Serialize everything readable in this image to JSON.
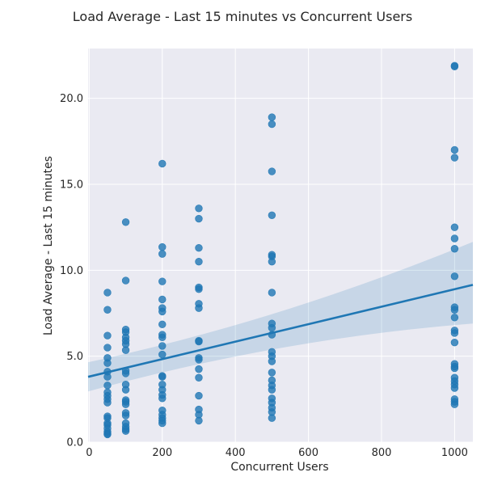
{
  "chart_data": {
    "type": "scatter",
    "title": "Load Average - Last 15 minutes vs Concurrent Users",
    "xlabel": "Concurrent Users",
    "ylabel": "Load Average - Last 15 minutes",
    "xlim": [
      -3,
      1050
    ],
    "ylim": [
      0,
      22.9
    ],
    "xticks": [
      0,
      200,
      400,
      600,
      800,
      1000
    ],
    "xtick_labels": [
      "0",
      "200",
      "400",
      "600",
      "800",
      "1000"
    ],
    "yticks": [
      0,
      5,
      10,
      15,
      20
    ],
    "ytick_labels": [
      "0.0",
      "5.0",
      "10.0",
      "15.0",
      "20.0"
    ],
    "grid": true,
    "background": "#eaeaf2",
    "point_color": "#1f77b4",
    "regression": {
      "x": [
        -3,
        1050
      ],
      "y": [
        3.8,
        9.15
      ],
      "ci_lower": [
        2.95,
        6.9
      ],
      "ci_upper": [
        4.65,
        11.65
      ]
    },
    "points": [
      {
        "x": 50,
        "y": 8.7
      },
      {
        "x": 50,
        "y": 7.7
      },
      {
        "x": 50,
        "y": 6.2
      },
      {
        "x": 50,
        "y": 5.5
      },
      {
        "x": 50,
        "y": 4.9
      },
      {
        "x": 50,
        "y": 4.6
      },
      {
        "x": 50,
        "y": 4.1
      },
      {
        "x": 50,
        "y": 3.8
      },
      {
        "x": 50,
        "y": 3.3
      },
      {
        "x": 50,
        "y": 2.9
      },
      {
        "x": 50,
        "y": 2.7
      },
      {
        "x": 50,
        "y": 2.5
      },
      {
        "x": 50,
        "y": 2.3
      },
      {
        "x": 50,
        "y": 1.5
      },
      {
        "x": 50,
        "y": 1.4
      },
      {
        "x": 50,
        "y": 1.1
      },
      {
        "x": 50,
        "y": 1.0
      },
      {
        "x": 50,
        "y": 0.8
      },
      {
        "x": 50,
        "y": 0.6
      },
      {
        "x": 50,
        "y": 0.5
      },
      {
        "x": 50,
        "y": 0.45
      },
      {
        "x": 100,
        "y": 12.8
      },
      {
        "x": 100,
        "y": 9.4
      },
      {
        "x": 100,
        "y": 6.55
      },
      {
        "x": 100,
        "y": 6.4
      },
      {
        "x": 100,
        "y": 6.1
      },
      {
        "x": 100,
        "y": 5.9
      },
      {
        "x": 100,
        "y": 5.7
      },
      {
        "x": 100,
        "y": 5.35
      },
      {
        "x": 100,
        "y": 4.15
      },
      {
        "x": 100,
        "y": 4.0
      },
      {
        "x": 100,
        "y": 3.35
      },
      {
        "x": 100,
        "y": 3.05
      },
      {
        "x": 100,
        "y": 2.45
      },
      {
        "x": 100,
        "y": 2.35
      },
      {
        "x": 100,
        "y": 2.2
      },
      {
        "x": 100,
        "y": 1.7
      },
      {
        "x": 100,
        "y": 1.55
      },
      {
        "x": 100,
        "y": 1.1
      },
      {
        "x": 100,
        "y": 0.9
      },
      {
        "x": 100,
        "y": 0.75
      },
      {
        "x": 100,
        "y": 0.65
      },
      {
        "x": 200,
        "y": 16.2
      },
      {
        "x": 200,
        "y": 11.35
      },
      {
        "x": 200,
        "y": 10.95
      },
      {
        "x": 200,
        "y": 9.35
      },
      {
        "x": 200,
        "y": 8.3
      },
      {
        "x": 200,
        "y": 7.8
      },
      {
        "x": 200,
        "y": 7.6
      },
      {
        "x": 200,
        "y": 6.85
      },
      {
        "x": 200,
        "y": 6.25
      },
      {
        "x": 200,
        "y": 6.1
      },
      {
        "x": 200,
        "y": 5.6
      },
      {
        "x": 200,
        "y": 5.1
      },
      {
        "x": 200,
        "y": 3.85
      },
      {
        "x": 200,
        "y": 3.8
      },
      {
        "x": 200,
        "y": 3.35
      },
      {
        "x": 200,
        "y": 3.05
      },
      {
        "x": 200,
        "y": 2.75
      },
      {
        "x": 200,
        "y": 2.55
      },
      {
        "x": 200,
        "y": 1.85
      },
      {
        "x": 200,
        "y": 1.6
      },
      {
        "x": 200,
        "y": 1.4
      },
      {
        "x": 200,
        "y": 1.25
      },
      {
        "x": 200,
        "y": 1.1
      },
      {
        "x": 300,
        "y": 13.6
      },
      {
        "x": 300,
        "y": 13.0
      },
      {
        "x": 300,
        "y": 11.3
      },
      {
        "x": 300,
        "y": 10.5
      },
      {
        "x": 300,
        "y": 9.0
      },
      {
        "x": 300,
        "y": 8.9
      },
      {
        "x": 300,
        "y": 8.05
      },
      {
        "x": 300,
        "y": 7.8
      },
      {
        "x": 300,
        "y": 5.9
      },
      {
        "x": 300,
        "y": 5.85
      },
      {
        "x": 300,
        "y": 4.9
      },
      {
        "x": 300,
        "y": 4.8
      },
      {
        "x": 300,
        "y": 4.25
      },
      {
        "x": 300,
        "y": 3.75
      },
      {
        "x": 300,
        "y": 2.7
      },
      {
        "x": 300,
        "y": 1.9
      },
      {
        "x": 300,
        "y": 1.6
      },
      {
        "x": 300,
        "y": 1.25
      },
      {
        "x": 500,
        "y": 18.9
      },
      {
        "x": 500,
        "y": 18.5
      },
      {
        "x": 500,
        "y": 15.75
      },
      {
        "x": 500,
        "y": 13.2
      },
      {
        "x": 500,
        "y": 10.9
      },
      {
        "x": 500,
        "y": 10.8
      },
      {
        "x": 500,
        "y": 10.5
      },
      {
        "x": 500,
        "y": 8.7
      },
      {
        "x": 500,
        "y": 6.9
      },
      {
        "x": 500,
        "y": 6.65
      },
      {
        "x": 500,
        "y": 6.25
      },
      {
        "x": 500,
        "y": 5.25
      },
      {
        "x": 500,
        "y": 5.0
      },
      {
        "x": 500,
        "y": 4.7
      },
      {
        "x": 500,
        "y": 4.05
      },
      {
        "x": 500,
        "y": 3.6
      },
      {
        "x": 500,
        "y": 3.3
      },
      {
        "x": 500,
        "y": 3.05
      },
      {
        "x": 500,
        "y": 2.55
      },
      {
        "x": 500,
        "y": 2.3
      },
      {
        "x": 500,
        "y": 2.0
      },
      {
        "x": 500,
        "y": 1.75
      },
      {
        "x": 500,
        "y": 1.4
      },
      {
        "x": 1000,
        "y": 21.9
      },
      {
        "x": 1000,
        "y": 21.85
      },
      {
        "x": 1000,
        "y": 17.0
      },
      {
        "x": 1000,
        "y": 16.55
      },
      {
        "x": 1000,
        "y": 12.5
      },
      {
        "x": 1000,
        "y": 11.85
      },
      {
        "x": 1000,
        "y": 11.25
      },
      {
        "x": 1000,
        "y": 9.65
      },
      {
        "x": 1000,
        "y": 7.85
      },
      {
        "x": 1000,
        "y": 7.7
      },
      {
        "x": 1000,
        "y": 7.25
      },
      {
        "x": 1000,
        "y": 6.5
      },
      {
        "x": 1000,
        "y": 6.35
      },
      {
        "x": 1000,
        "y": 5.8
      },
      {
        "x": 1000,
        "y": 4.55
      },
      {
        "x": 1000,
        "y": 4.4
      },
      {
        "x": 1000,
        "y": 4.3
      },
      {
        "x": 1000,
        "y": 3.75
      },
      {
        "x": 1000,
        "y": 3.55
      },
      {
        "x": 1000,
        "y": 3.35
      },
      {
        "x": 1000,
        "y": 3.15
      },
      {
        "x": 1000,
        "y": 2.5
      },
      {
        "x": 1000,
        "y": 2.35
      },
      {
        "x": 1000,
        "y": 2.2
      }
    ]
  }
}
